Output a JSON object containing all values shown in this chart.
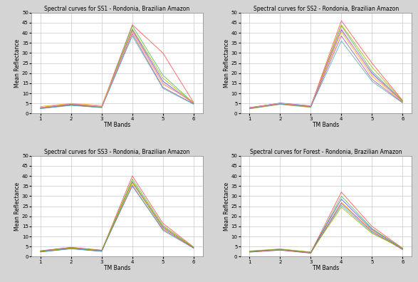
{
  "titles": [
    "Spectral curves for SS1 - Rondonia, Brazilian Amazon",
    "Spectral curves for SS2 - Rondonia, Brazilian Amazon",
    "Spectral curves for SS3 - Rondonia, Brazilian Amazon",
    "Spectral curves for Forest - Rondonia, Brazilian Amazon"
  ],
  "xlabel": "TM Bands",
  "ylabel_ss1": "Mean Reflectance",
  "ylabel_ss2": "Mean Reflectance",
  "ylabel_ss3": "Mean Reflectance",
  "ylabel_forest": "Mean Reflectance",
  "xlim": [
    0.7,
    6.3
  ],
  "xticks": [
    1,
    2,
    3,
    4,
    5,
    6
  ],
  "ylim": [
    0,
    50
  ],
  "yticks": [
    0,
    5,
    10,
    15,
    20,
    25,
    30,
    35,
    40,
    45,
    50
  ],
  "ss1_curves": [
    [
      3.0,
      4.8,
      3.5,
      44.0,
      30.0,
      5.5
    ],
    [
      2.5,
      4.2,
      3.0,
      43.5,
      19.0,
      5.2
    ],
    [
      2.8,
      4.5,
      3.2,
      41.5,
      16.0,
      5.0
    ],
    [
      3.5,
      5.0,
      4.0,
      40.5,
      14.5,
      5.8
    ],
    [
      2.6,
      4.3,
      3.1,
      39.5,
      13.0,
      4.8
    ],
    [
      2.4,
      4.0,
      2.9,
      38.5,
      12.5,
      4.6
    ],
    [
      2.7,
      4.6,
      3.3,
      42.0,
      17.5,
      5.1
    ],
    [
      2.9,
      4.8,
      3.4,
      40.8,
      15.0,
      5.3
    ]
  ],
  "ss2_curves": [
    [
      3.0,
      5.0,
      3.5,
      46.0,
      25.0,
      6.5
    ],
    [
      2.5,
      4.8,
      3.2,
      43.5,
      21.0,
      6.2
    ],
    [
      2.8,
      5.2,
      3.8,
      41.5,
      20.0,
      6.0
    ],
    [
      2.3,
      4.5,
      3.0,
      40.5,
      18.5,
      5.8
    ],
    [
      2.6,
      4.9,
      3.4,
      38.5,
      17.0,
      5.5
    ],
    [
      2.4,
      4.6,
      3.2,
      36.0,
      16.0,
      5.2
    ],
    [
      2.7,
      5.0,
      3.5,
      44.0,
      23.0,
      6.3
    ],
    [
      2.9,
      5.1,
      3.7,
      42.0,
      19.5,
      6.0
    ]
  ],
  "ss3_curves": [
    [
      2.8,
      4.5,
      3.0,
      40.0,
      16.5,
      4.8
    ],
    [
      2.5,
      4.2,
      2.8,
      38.5,
      15.5,
      4.5
    ],
    [
      2.3,
      3.9,
      2.6,
      37.0,
      14.5,
      4.3
    ],
    [
      2.6,
      4.3,
      3.1,
      36.5,
      14.0,
      4.6
    ],
    [
      2.9,
      4.6,
      3.2,
      35.0,
      13.5,
      4.4
    ],
    [
      2.4,
      4.0,
      2.7,
      35.5,
      13.0,
      4.2
    ],
    [
      2.7,
      4.4,
      3.0,
      37.5,
      15.0,
      4.7
    ]
  ],
  "forest_curves": [
    [
      2.5,
      3.5,
      2.0,
      32.0,
      15.0,
      4.2
    ],
    [
      2.3,
      3.3,
      1.8,
      30.0,
      14.0,
      4.0
    ],
    [
      2.6,
      3.6,
      2.1,
      28.5,
      13.5,
      3.8
    ],
    [
      2.4,
      3.4,
      1.9,
      27.0,
      13.0,
      3.6
    ],
    [
      2.2,
      3.2,
      1.7,
      26.5,
      12.5,
      3.5
    ],
    [
      2.7,
      3.7,
      2.2,
      25.5,
      12.0,
      3.9
    ],
    [
      2.8,
      3.8,
      2.3,
      24.5,
      11.5,
      4.1
    ]
  ],
  "line_colors": [
    "#ff4444",
    "#44bb44",
    "#4444dd",
    "#ffaa00",
    "#aa44aa",
    "#44aaaa",
    "#aaaa00",
    "#ff88cc"
  ],
  "title_fontsize": 5.5,
  "label_fontsize": 5.5,
  "tick_fontsize": 5.0,
  "linewidth": 0.6,
  "background_color": "#ffffff",
  "outer_color": "#d4d4d4",
  "grid_color": "#bbbbbb"
}
